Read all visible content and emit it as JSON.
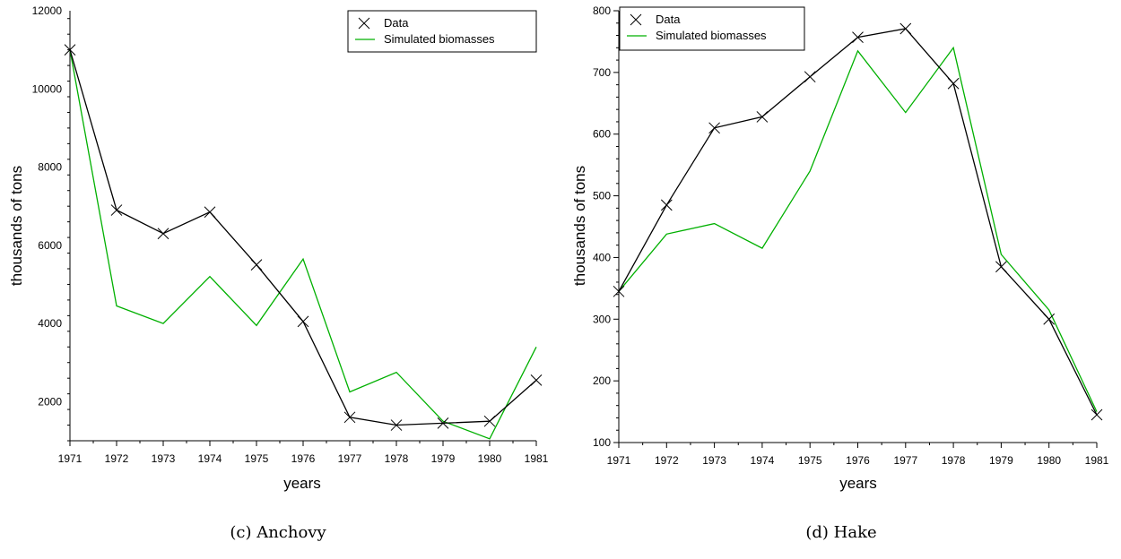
{
  "chart_data": [
    {
      "type": "line",
      "caption": "(c) Anchovy",
      "xlabel": "years",
      "ylabel": "thousands of tons",
      "x": [
        1971,
        1972,
        1973,
        1974,
        1975,
        1976,
        1977,
        1978,
        1979,
        1980,
        1981
      ],
      "xticks": [
        "1971",
        "1972",
        "1973",
        "1974",
        "1975",
        "1976",
        "1977",
        "1978",
        "1979",
        "1980",
        "1981"
      ],
      "ylim": [
        1000,
        12000
      ],
      "yticks": [
        "2000",
        "4000",
        "6000",
        "8000",
        "10000",
        "12000"
      ],
      "ytick_values": [
        2000,
        4000,
        6000,
        8000,
        10000,
        12000
      ],
      "legend_position": "top-right",
      "series": [
        {
          "name": "Data",
          "color": "#000000",
          "marker": "x",
          "values": [
            11000,
            6900,
            6300,
            6850,
            5500,
            4050,
            1600,
            1400,
            1450,
            1500,
            2550
          ]
        },
        {
          "name": "Simulated biomasses",
          "color": "#00b000",
          "marker": "none",
          "values": [
            11000,
            4450,
            4000,
            5200,
            3950,
            5650,
            2250,
            2750,
            1500,
            1050,
            3400
          ]
        }
      ]
    },
    {
      "type": "line",
      "caption": "(d) Hake",
      "xlabel": "years",
      "ylabel": "thousands of tons",
      "x": [
        1971,
        1972,
        1973,
        1974,
        1975,
        1976,
        1977,
        1978,
        1979,
        1980,
        1981
      ],
      "xticks": [
        "1971",
        "1972",
        "1973",
        "1974",
        "1975",
        "1976",
        "1977",
        "1978",
        "1979",
        "1980",
        "1981"
      ],
      "ylim": [
        100,
        800
      ],
      "yticks": [
        "100",
        "200",
        "300",
        "400",
        "500",
        "600",
        "700",
        "800"
      ],
      "ytick_values": [
        100,
        200,
        300,
        400,
        500,
        600,
        700,
        800
      ],
      "legend_position": "top-left",
      "series": [
        {
          "name": "Data",
          "color": "#000000",
          "marker": "x",
          "values": [
            345,
            485,
            610,
            628,
            693,
            757,
            771,
            682,
            385,
            300,
            145
          ]
        },
        {
          "name": "Simulated biomasses",
          "color": "#00b000",
          "marker": "none",
          "values": [
            345,
            438,
            455,
            415,
            540,
            735,
            635,
            740,
            405,
            315,
            150
          ]
        }
      ]
    }
  ]
}
